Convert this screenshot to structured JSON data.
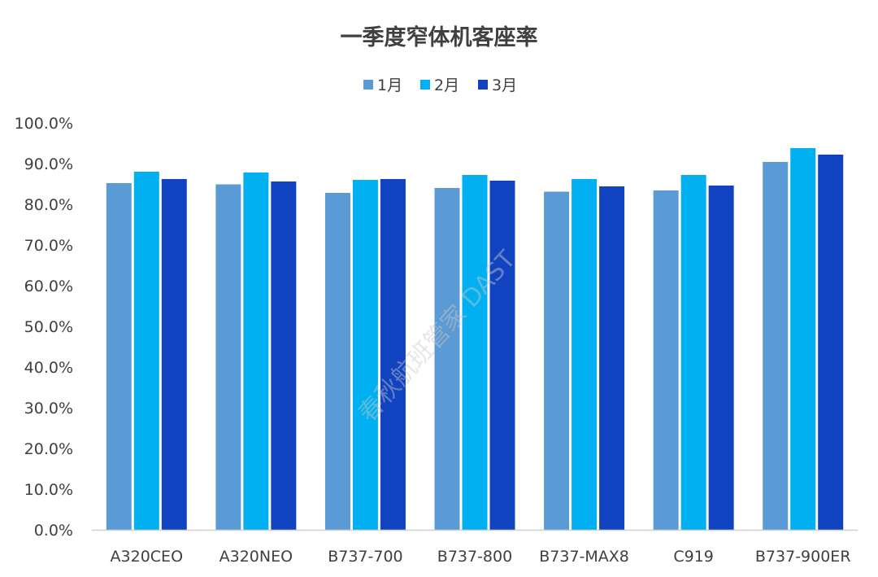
{
  "chart_data": {
    "type": "bar",
    "title": "一季度窄体机客座率",
    "categories": [
      "A320CEO",
      "A320NEO",
      "B737-700",
      "B737-800",
      "B737-MAX8",
      "C919",
      "B737-900ER"
    ],
    "series": [
      {
        "name": "1月",
        "color": "#5B9BD5",
        "values": [
          85.2,
          84.9,
          82.8,
          84.0,
          83.1,
          83.4,
          90.4
        ]
      },
      {
        "name": "2月",
        "color": "#00B0F0",
        "values": [
          88.0,
          87.8,
          86.0,
          87.2,
          86.2,
          87.2,
          93.8
        ]
      },
      {
        "name": "3月",
        "color": "#1143C0",
        "values": [
          86.2,
          85.6,
          86.2,
          85.8,
          84.4,
          84.6,
          92.2
        ]
      }
    ],
    "ylim": [
      0,
      100
    ],
    "yticks": [
      "0.0%",
      "10.0%",
      "20.0%",
      "30.0%",
      "40.0%",
      "50.0%",
      "60.0%",
      "70.0%",
      "80.0%",
      "90.0%",
      "100.0%"
    ],
    "grid": false,
    "legend": "top-center"
  },
  "watermark": "春秋航班管家 DAST"
}
